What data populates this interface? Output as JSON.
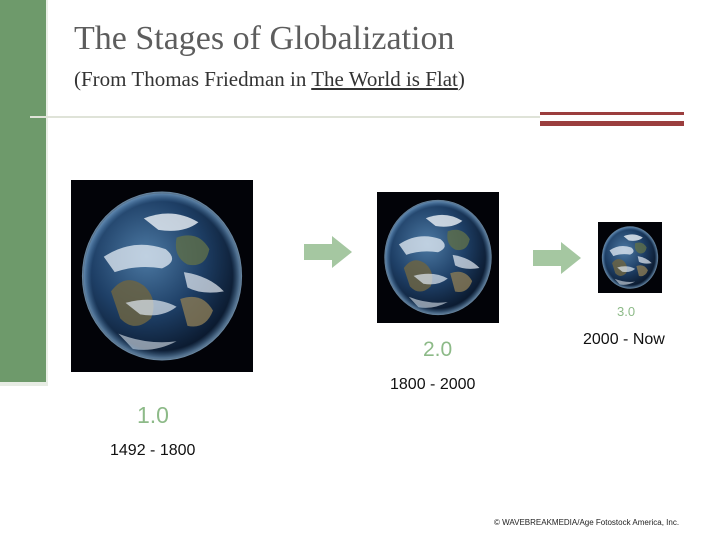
{
  "slide": {
    "title": "The Stages of Globalization",
    "subtitle_prefix": "(From Thomas Friedman in ",
    "subtitle_book": "The World is Flat",
    "subtitle_suffix": ")"
  },
  "stages": [
    {
      "label": "1.0",
      "years": "1492 - 1800",
      "image_icon": "earth-globe-icon"
    },
    {
      "label": "2.0",
      "years": "1800 - 2000",
      "image_icon": "earth-globe-icon"
    },
    {
      "label": "3.0",
      "years": "2000 - Now",
      "image_icon": "earth-globe-icon"
    }
  ],
  "arrows": [
    "right-arrow-icon",
    "right-arrow-icon"
  ],
  "credit": "© WAVEBREAKMEDIA/Age Fotostock America, Inc.",
  "colors": {
    "sidebar": "#6e9a6b",
    "accent_bar": "#9b3e3e",
    "stage_label": "#8dba88",
    "arrow": "#a5c7a1",
    "title": "#5d5d5d"
  }
}
